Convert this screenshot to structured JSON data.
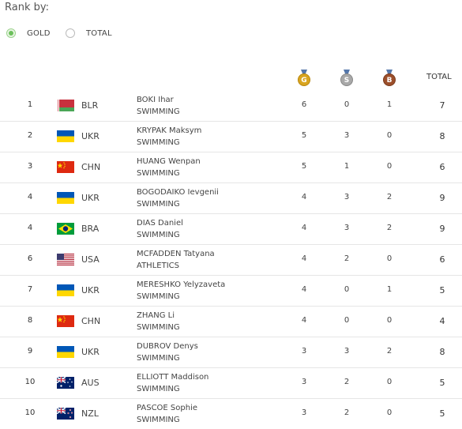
{
  "rank_by_label": "Rank by:",
  "rank_options": [
    {
      "label": "GOLD",
      "selected": true
    },
    {
      "label": "TOTAL",
      "selected": false
    }
  ],
  "header": {
    "gold_letter": "G",
    "silver_letter": "S",
    "bronze_letter": "B",
    "total_label": "TOTAL"
  },
  "colors": {
    "gold": "#d9a520",
    "silver": "#a8a8a8",
    "bronze": "#9c4f2b",
    "selected_radio": "#6cc05c"
  },
  "rows": [
    {
      "rank": "1",
      "noc": "BLR",
      "flag": "flag-blr",
      "name": "BOKI Ihar",
      "sport": "SWIMMING",
      "gold": "6",
      "silver": "0",
      "bronze": "1",
      "total": "7"
    },
    {
      "rank": "2",
      "noc": "UKR",
      "flag": "flag-ukr",
      "name": "KRYPAK Maksym",
      "sport": "SWIMMING",
      "gold": "5",
      "silver": "3",
      "bronze": "0",
      "total": "8"
    },
    {
      "rank": "3",
      "noc": "CHN",
      "flag": "flag-chn",
      "name": "HUANG Wenpan",
      "sport": "SWIMMING",
      "gold": "5",
      "silver": "1",
      "bronze": "0",
      "total": "6"
    },
    {
      "rank": "4",
      "noc": "UKR",
      "flag": "flag-ukr",
      "name": "BOGODAIKO Ievgenii",
      "sport": "SWIMMING",
      "gold": "4",
      "silver": "3",
      "bronze": "2",
      "total": "9"
    },
    {
      "rank": "4",
      "noc": "BRA",
      "flag": "flag-bra",
      "name": "DIAS Daniel",
      "sport": "SWIMMING",
      "gold": "4",
      "silver": "3",
      "bronze": "2",
      "total": "9"
    },
    {
      "rank": "6",
      "noc": "USA",
      "flag": "flag-usa",
      "name": "MCFADDEN Tatyana",
      "sport": "ATHLETICS",
      "gold": "4",
      "silver": "2",
      "bronze": "0",
      "total": "6"
    },
    {
      "rank": "7",
      "noc": "UKR",
      "flag": "flag-ukr",
      "name": "MERESHKO Yelyzaveta",
      "sport": "SWIMMING",
      "gold": "4",
      "silver": "0",
      "bronze": "1",
      "total": "5"
    },
    {
      "rank": "8",
      "noc": "CHN",
      "flag": "flag-chn",
      "name": "ZHANG Li",
      "sport": "SWIMMING",
      "gold": "4",
      "silver": "0",
      "bronze": "0",
      "total": "4"
    },
    {
      "rank": "9",
      "noc": "UKR",
      "flag": "flag-ukr",
      "name": "DUBROV Denys",
      "sport": "SWIMMING",
      "gold": "3",
      "silver": "3",
      "bronze": "2",
      "total": "8"
    },
    {
      "rank": "10",
      "noc": "AUS",
      "flag": "flag-aus",
      "name": "ELLIOTT Maddison",
      "sport": "SWIMMING",
      "gold": "3",
      "silver": "2",
      "bronze": "0",
      "total": "5"
    },
    {
      "rank": "10",
      "noc": "NZL",
      "flag": "flag-nzl",
      "name": "PASCOE Sophie",
      "sport": "SWIMMING",
      "gold": "3",
      "silver": "2",
      "bronze": "0",
      "total": "5"
    }
  ]
}
